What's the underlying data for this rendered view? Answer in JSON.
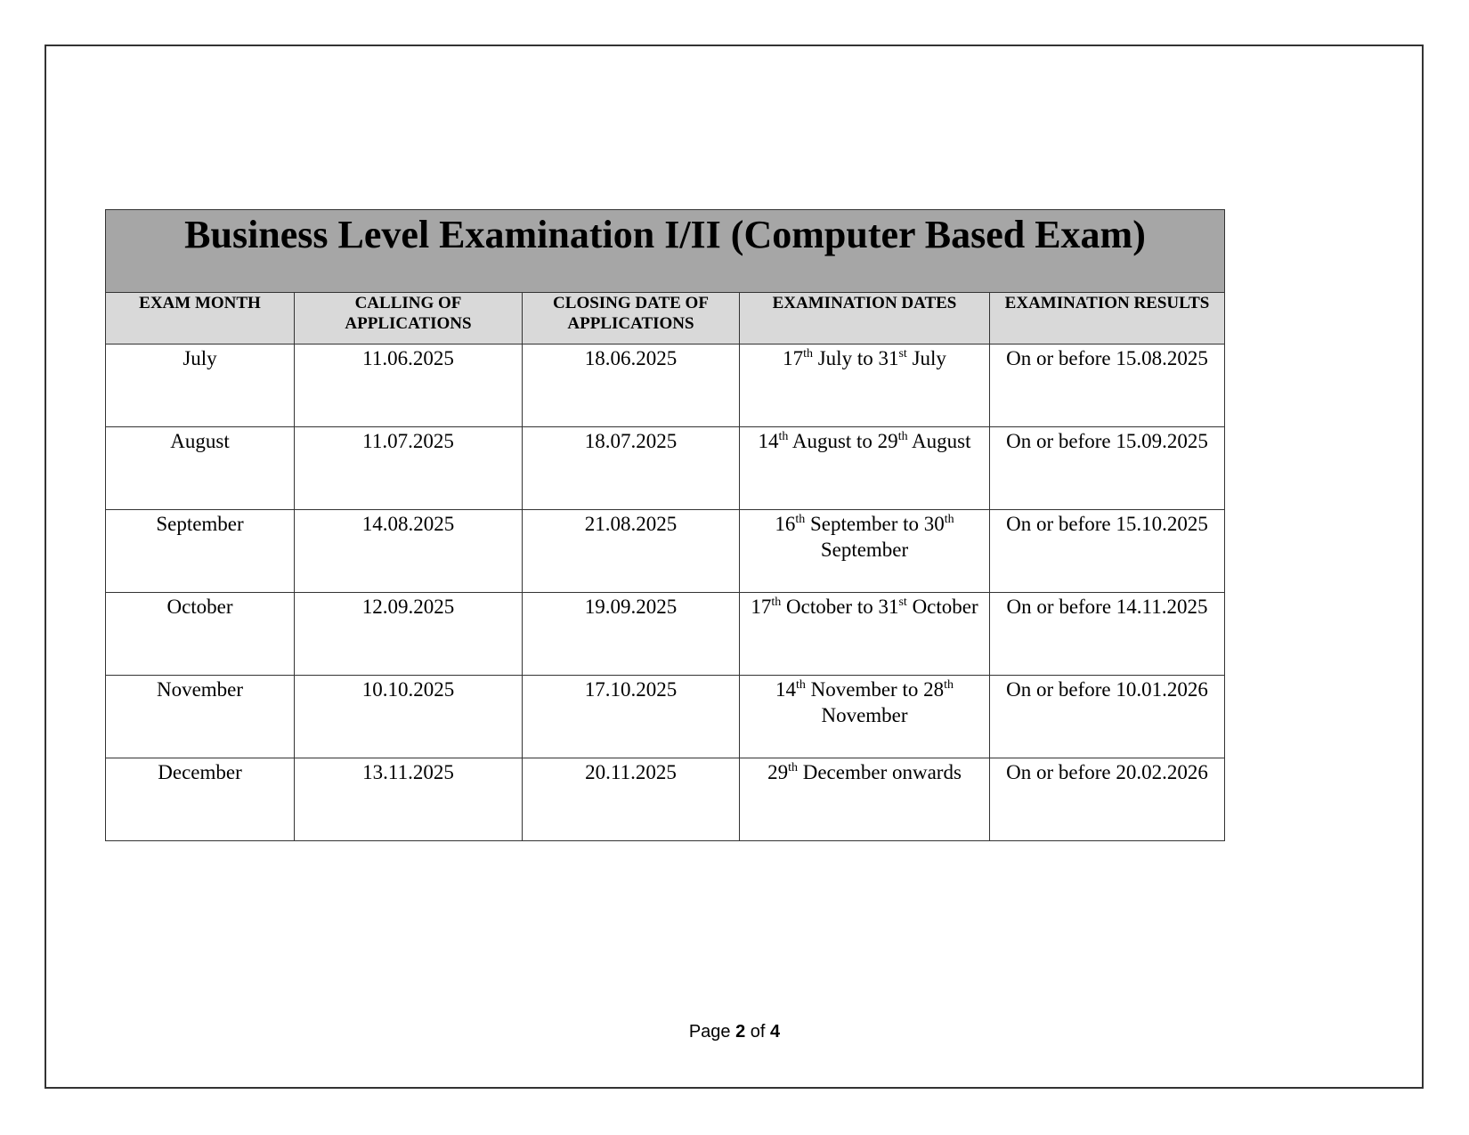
{
  "title": "Business Level Examination I/II (Computer Based Exam)",
  "headers": [
    "EXAM MONTH",
    "CALLING OF APPLICATIONS",
    "CLOSING DATE OF APPLICATIONS",
    "EXAMINATION DATES",
    "EXAMINATION RESULTS"
  ],
  "rows": [
    {
      "month": "July",
      "calling": "11.06.2025",
      "closing": "18.06.2025",
      "d1": "17",
      "s1": "th",
      "m1": " July to 31",
      "s2": "st",
      "m2": " July",
      "result": "On or before 15.08.2025"
    },
    {
      "month": "August",
      "calling": "11.07.2025",
      "closing": "18.07.2025",
      "d1": "14",
      "s1": "th",
      "m1": " August to 29",
      "s2": "th",
      "m2": " August",
      "result": "On or before 15.09.2025"
    },
    {
      "month": "September",
      "calling": "14.08.2025",
      "closing": "21.08.2025",
      "d1": "16",
      "s1": "th",
      "m1": " September to 30",
      "s2": "th",
      "m2": " September",
      "result": "On or before 15.10.2025"
    },
    {
      "month": "October",
      "calling": "12.09.2025",
      "closing": "19.09.2025",
      "d1": "17",
      "s1": "th",
      "m1": " October to 31",
      "s2": "st",
      "m2": " October",
      "result": "On or before 14.11.2025"
    },
    {
      "month": "November",
      "calling": "10.10.2025",
      "closing": "17.10.2025",
      "d1": "14",
      "s1": "th",
      "m1": " November to 28",
      "s2": "th",
      "m2": " November",
      "result": "On or before 10.01.2026"
    },
    {
      "month": "December",
      "calling": "13.11.2025",
      "closing": "20.11.2025",
      "d1": "29",
      "s1": "th",
      "m1": " December onwards",
      "s2": "",
      "m2": "",
      "result": "On or before 20.02.2026"
    }
  ],
  "footer": {
    "prefix": "Page ",
    "current": "2",
    "mid": " of ",
    "total": "4"
  }
}
